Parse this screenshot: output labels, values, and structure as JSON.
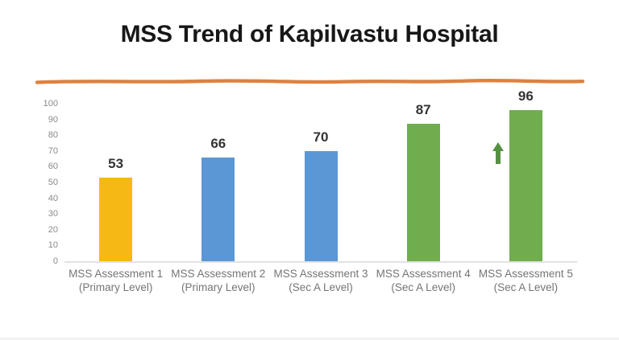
{
  "slide": {
    "title": "MSS Trend of Kapilvastu Hospital",
    "title_color": "#171717",
    "divider_color": "#de8140",
    "background": "#ffffff"
  },
  "chart_data": {
    "type": "bar",
    "title": "MSS Trend of Kapilvastu Hospital",
    "categories": [
      {
        "line1": "MSS Assessment 1",
        "line2": "(Primary Level)"
      },
      {
        "line1": "MSS Assessment 2",
        "line2": "(Primary Level)"
      },
      {
        "line1": "MSS Assessment 3",
        "line2": "(Sec A Level)"
      },
      {
        "line1": "MSS Assessment 4",
        "line2": "(Sec A Level)"
      },
      {
        "line1": "MSS Assessment 5",
        "line2": "(Sec A Level)"
      }
    ],
    "values": [
      53,
      66,
      70,
      87,
      96
    ],
    "bar_colors": [
      "#f6b814",
      "#5b97d4",
      "#5b97d4",
      "#6fad4e",
      "#6fad4e"
    ],
    "value_label_color": "#333333",
    "axis_label_color": "#757575",
    "xlabel": "",
    "ylabel": "",
    "ylim": [
      0,
      100
    ],
    "yticks": [
      0,
      10,
      20,
      30,
      40,
      50,
      60,
      70,
      80,
      90,
      100
    ],
    "grid": false,
    "legend": "none",
    "baseline_color": "#e2e2e2",
    "annotations": [
      {
        "type": "up-arrow",
        "color": "#559141",
        "location": "left of bar 5"
      }
    ]
  }
}
